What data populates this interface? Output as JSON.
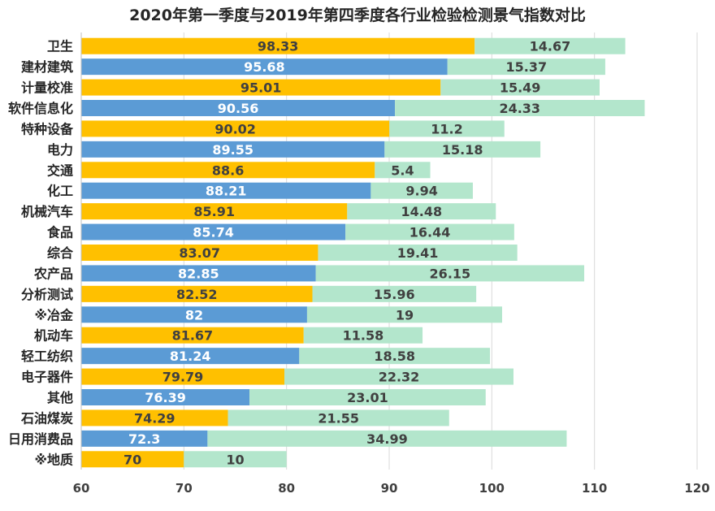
{
  "chart_data": {
    "type": "bar",
    "orientation": "horizontal",
    "stacked": true,
    "title": "2020年第一季度与2019年第四季度各行业检验检测景气指数对比",
    "categories": [
      "卫生",
      "建材建筑",
      "计量校准",
      "软件信息化",
      "特种设备",
      "电力",
      "交通",
      "化工",
      "机械汽车",
      "食品",
      "综合",
      "农产品",
      "分析测试",
      "※冶金",
      "机动车",
      "轻工纺织",
      "电子器件",
      "其他",
      "石油煤炭",
      "日用消费品",
      "※地质"
    ],
    "base_values": [
      98.33,
      95.68,
      95.01,
      90.56,
      90.02,
      89.55,
      88.6,
      88.21,
      85.91,
      85.74,
      83.07,
      82.85,
      82.52,
      82,
      81.67,
      81.24,
      79.79,
      76.39,
      74.29,
      72.3,
      70
    ],
    "base_labels": [
      "98.33",
      "95.68",
      "95.01",
      "90.56",
      "90.02",
      "89.55",
      "88.6",
      "88.21",
      "85.91",
      "85.74",
      "83.07",
      "82.85",
      "82.52",
      "82",
      "81.67",
      "81.24",
      "79.79",
      "76.39",
      "74.29",
      "72.3",
      "70"
    ],
    "extra_values": [
      14.67,
      15.37,
      15.49,
      24.33,
      11.2,
      15.18,
      5.4,
      9.94,
      14.48,
      16.44,
      19.41,
      26.15,
      15.96,
      19,
      11.58,
      18.58,
      22.32,
      23.01,
      21.55,
      34.99,
      10
    ],
    "extra_labels": [
      "14.67",
      "15.37",
      "15.49",
      "24.33",
      "11.2",
      "15.18",
      "5.4",
      "9.94",
      "14.48",
      "16.44",
      "19.41",
      "26.15",
      "15.96",
      "19",
      "11.58",
      "18.58",
      "22.32",
      "23.01",
      "21.55",
      "34.99",
      "10"
    ],
    "xlim": [
      60,
      120
    ],
    "xticks": [
      "60",
      "70",
      "80",
      "90",
      "100",
      "110",
      "120"
    ],
    "xtick_values": [
      60,
      70,
      80,
      90,
      100,
      110,
      120
    ],
    "grid": true,
    "legend": "none",
    "colors": {
      "base_even": "#FFC000",
      "base_odd": "#5B9BD5",
      "extra": "#B3E6CC",
      "label_on_gold": "#404040",
      "label_on_blue": "#ffffff",
      "label_on_extra": "#404040",
      "category_text": "#262626",
      "tick_text": "#404040",
      "grid": "#D9D9D9"
    }
  }
}
